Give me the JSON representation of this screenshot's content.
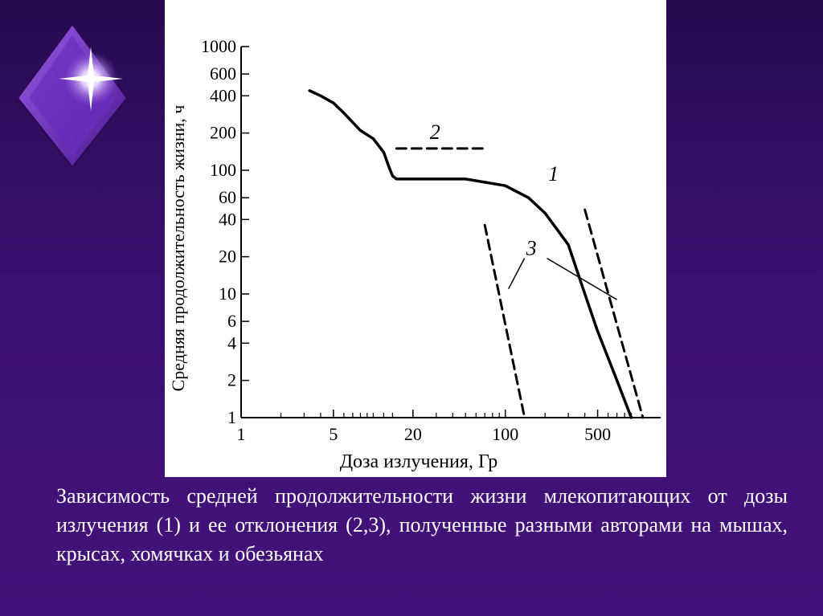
{
  "caption": "Зависимость средней продолжительности жизни млекопитающих от дозы излучения (1) и ее отклонения (2,3), полученные разными авторами на мышах, крысах, хомячках и обезьянах",
  "colors": {
    "background": "#3b1070",
    "panel": "#ffffff",
    "ink": "#000000",
    "caption_text": "#ffffff",
    "logo": "#7a35c9"
  },
  "logo": {
    "icon": "diamond-star-icon"
  },
  "chart_data": {
    "type": "line",
    "xlabel": "Доза излучения, Гр",
    "ylabel": "Средняя продолжительность жизни, ч",
    "x_scale": "log",
    "y_scale": "log",
    "xlim": [
      1,
      1500
    ],
    "ylim": [
      1,
      1000
    ],
    "x_ticks": [
      {
        "value": 1,
        "label": "1"
      },
      {
        "value": 5,
        "label": "5"
      },
      {
        "value": 20,
        "label": "20"
      },
      {
        "value": 100,
        "label": "100"
      },
      {
        "value": 500,
        "label": "500"
      }
    ],
    "y_ticks": [
      {
        "value": 1000,
        "label": "1000"
      },
      {
        "value": 600,
        "label": "600"
      },
      {
        "value": 400,
        "label": "400"
      },
      {
        "value": 200,
        "label": "200"
      },
      {
        "value": 100,
        "label": "100"
      },
      {
        "value": 60,
        "label": "60"
      },
      {
        "value": 40,
        "label": "40"
      },
      {
        "value": 20,
        "label": "20"
      },
      {
        "value": 10,
        "label": "10"
      },
      {
        "value": 6,
        "label": "6"
      },
      {
        "value": 4,
        "label": "4"
      },
      {
        "value": 2,
        "label": "2"
      },
      {
        "value": 1,
        "label": "1"
      }
    ],
    "x_minor_ticks": [
      2,
      3,
      4,
      6,
      7,
      8,
      9,
      10,
      12,
      14,
      30,
      40,
      50,
      60,
      70,
      80,
      90,
      200,
      300,
      400,
      600,
      700,
      800,
      900
    ],
    "series": [
      {
        "name": "1",
        "style": "solid",
        "x": [
          3.3,
          4,
          5,
          6,
          8,
          10,
          12,
          13,
          14,
          15,
          20,
          30,
          50,
          100,
          150,
          200,
          300,
          400,
          500,
          700,
          900
        ],
        "y": [
          440,
          400,
          350,
          290,
          210,
          180,
          140,
          110,
          90,
          85,
          85,
          85,
          85,
          75,
          60,
          45,
          25,
          10,
          5,
          2,
          1
        ]
      },
      {
        "name": "2",
        "style": "dashed",
        "x": [
          15,
          70
        ],
        "y": [
          150,
          150
        ]
      },
      {
        "name": "3",
        "style": "dashed",
        "x": [
          70,
          140
        ],
        "y": [
          36,
          1
        ]
      },
      {
        "name": "3",
        "style": "dashed",
        "x": [
          400,
          1100
        ],
        "y": [
          48,
          1
        ]
      }
    ]
  }
}
